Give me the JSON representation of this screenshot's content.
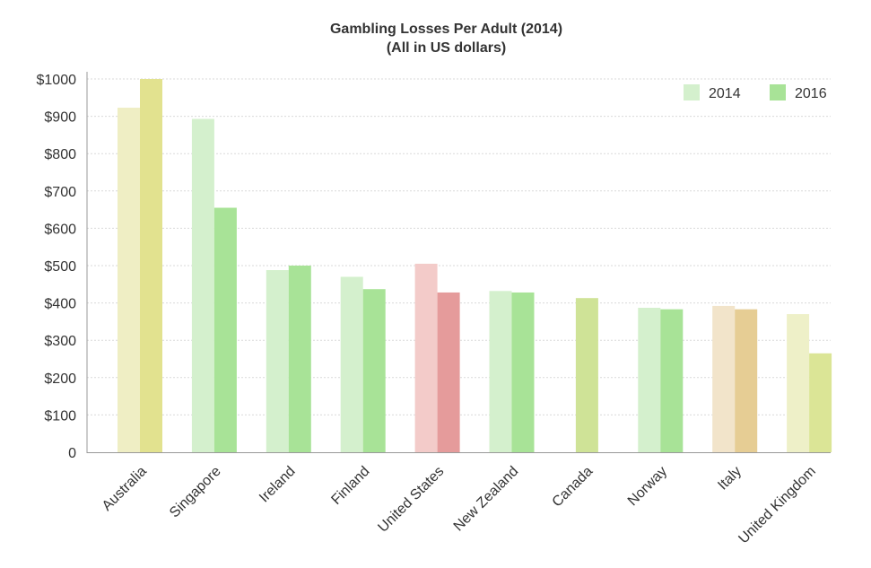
{
  "chart_data": {
    "type": "bar",
    "title": "Gambling Losses Per Adult (2014)",
    "subtitle": "(All in US dollars)",
    "xlabel": "",
    "ylabel": "",
    "ylim": [
      0,
      1000
    ],
    "yticks": [
      0,
      100,
      200,
      300,
      400,
      500,
      600,
      700,
      800,
      900,
      1000
    ],
    "ytick_labels": [
      "0",
      "$100",
      "$200",
      "$300",
      "$400",
      "$500",
      "$600",
      "$700",
      "$800",
      "$900",
      "$1000"
    ],
    "grid": "horizontal dashed",
    "legend_position": "top-right",
    "categories": [
      "Australia",
      "Singapore",
      "Ireland",
      "Finland",
      "United States",
      "New Zealand",
      "Canada",
      "Norway",
      "Italy",
      "United Kingdom"
    ],
    "series": [
      {
        "name": "2014",
        "legend_color": "#d4f0cd",
        "values": [
          923,
          893,
          488,
          470,
          505,
          432,
          null,
          387,
          392,
          370
        ],
        "colors": [
          "#efeec4",
          "#d4f0cd",
          "#d4f0cd",
          "#d4f0cd",
          "#f3cbc9",
          "#d4f0cd",
          null,
          "#d4f0cd",
          "#f2e4ca",
          "#eef0c8"
        ]
      },
      {
        "name": "2016",
        "legend_color": "#a8e397",
        "values": [
          1000,
          655,
          500,
          437,
          428,
          428,
          413,
          383,
          383,
          265
        ],
        "colors": [
          "#e2e28f",
          "#a8e397",
          "#a8e397",
          "#a8e397",
          "#e59b9b",
          "#a8e397",
          "#cfe397",
          "#a8e397",
          "#e6cd94",
          "#dbe596"
        ]
      }
    ]
  }
}
